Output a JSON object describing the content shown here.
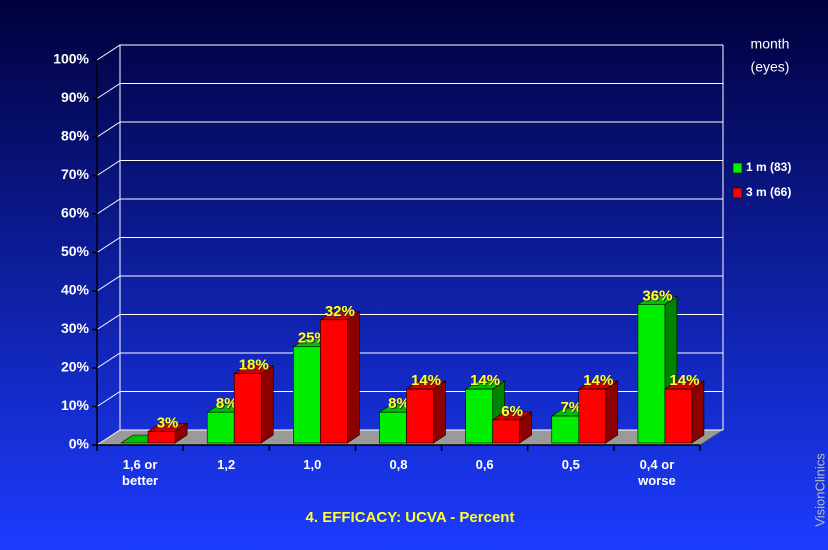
{
  "chart_data": {
    "type": "bar3d",
    "title": "4. EFFICACY: UCVA - Percent",
    "legend_title": [
      "month",
      "(eyes)"
    ],
    "legend": "right",
    "credit": "VisionClinics",
    "categories": [
      "1,6 or better",
      "1,2",
      "1,0",
      "0,8",
      "0,6",
      "0,5",
      "0,4 or worse"
    ],
    "series": [
      {
        "name": "1 m (83)",
        "color": "#00ee00",
        "values": [
          0,
          8,
          25,
          8,
          14,
          7,
          36
        ],
        "value_labels": [
          null,
          "8%",
          "25%",
          "8%",
          "14%",
          "7%",
          "36%"
        ]
      },
      {
        "name": "3 m (66)",
        "color": "#ff0000",
        "values": [
          3,
          18,
          32,
          14,
          6,
          14,
          14
        ],
        "value_labels": [
          "3%",
          "18%",
          "32%",
          "14%",
          "6%",
          "14%",
          "14%"
        ]
      }
    ],
    "ylim": [
      0,
      100
    ],
    "yticks": [
      {
        "value": 0,
        "label": "0%"
      },
      {
        "value": 10,
        "label": "10%"
      },
      {
        "value": 20,
        "label": "20%"
      },
      {
        "value": 30,
        "label": "30%"
      },
      {
        "value": 40,
        "label": "40%"
      },
      {
        "value": 50,
        "label": "50%"
      },
      {
        "value": 60,
        "label": "60%"
      },
      {
        "value": 70,
        "label": "70%"
      },
      {
        "value": 80,
        "label": "80%"
      },
      {
        "value": 90,
        "label": "90%"
      },
      {
        "value": 100,
        "label": "100%"
      }
    ],
    "grid": true
  }
}
